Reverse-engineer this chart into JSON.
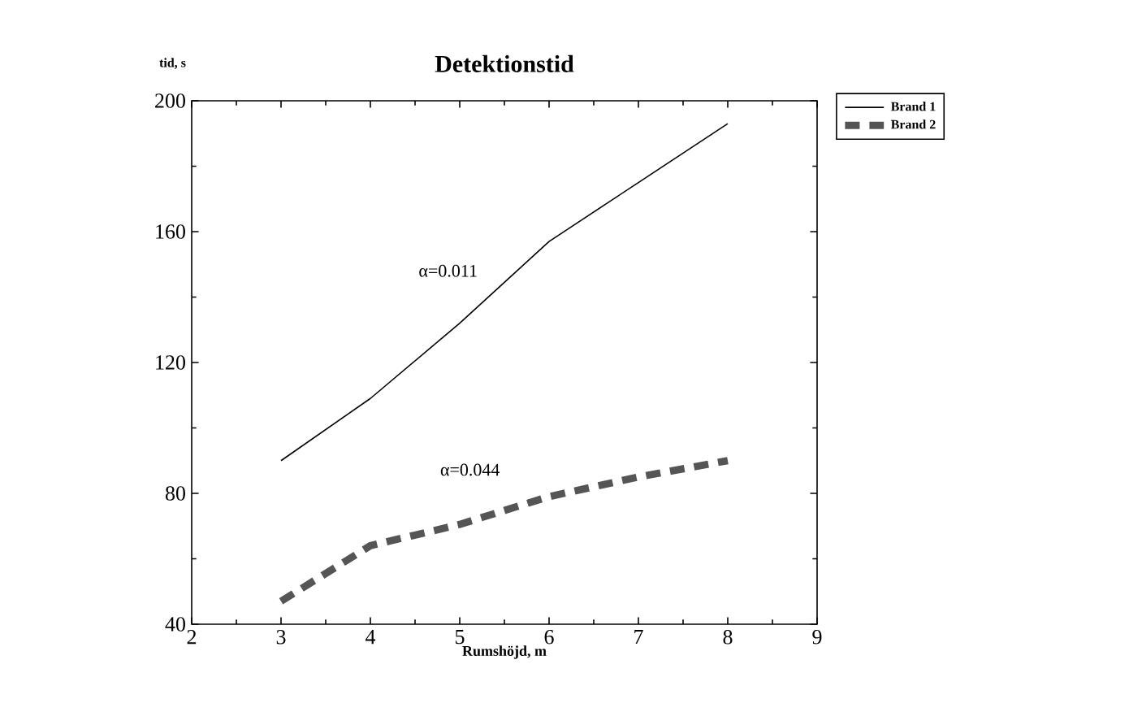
{
  "chart_data": {
    "type": "line",
    "title": "Detektionstid",
    "xlabel": "Rumshöjd, m",
    "ylabel": "tid, s",
    "x": [
      3,
      4,
      5,
      6,
      7,
      8
    ],
    "series": [
      {
        "name": "Brand 1",
        "color": "#000000",
        "line_style": "solid",
        "values": [
          90,
          109,
          132,
          157,
          175,
          193
        ]
      },
      {
        "name": "Brand 2",
        "color": "#555555",
        "line_style": "dashed",
        "values": [
          47,
          64,
          70.5,
          79,
          85,
          90
        ]
      }
    ],
    "annotations": [
      "α=0.011",
      "α=0.044"
    ],
    "xlim": [
      2,
      9
    ],
    "xticks": [
      2,
      3,
      4,
      5,
      6,
      7,
      8,
      9
    ],
    "ylim": [
      40,
      200
    ],
    "yticks": [
      40,
      80,
      120,
      160,
      200
    ],
    "grid": false,
    "legend": "top right",
    "marker": "none"
  }
}
